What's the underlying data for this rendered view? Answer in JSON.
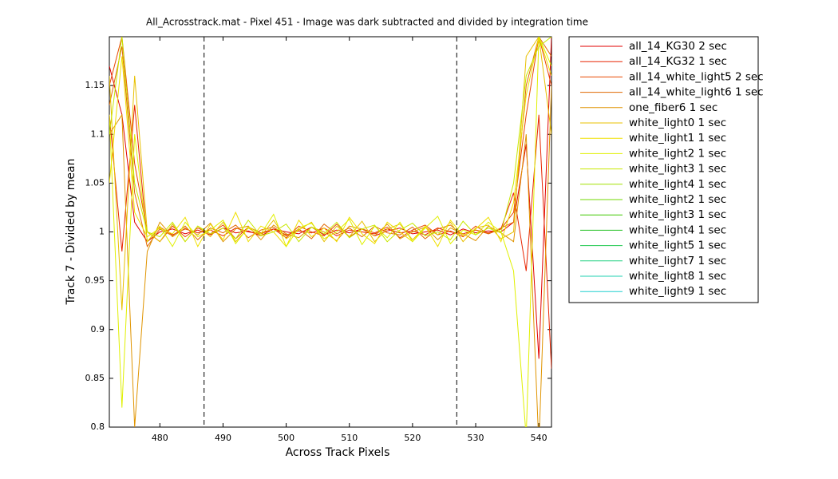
{
  "chart_data": {
    "type": "line",
    "title": "All_Acrosstrack.mat - Pixel 451 - Image was dark subtracted and divided by integration time",
    "xlabel": "Across Track Pixels",
    "ylabel": "Track 7 - Divided by mean",
    "xlim": [
      472,
      542
    ],
    "xticks": [
      480,
      490,
      500,
      510,
      520,
      530,
      540
    ],
    "ylim": [
      0.8,
      1.2
    ],
    "yticks": [
      0.8,
      0.85,
      0.9,
      0.95,
      1,
      1.05,
      1.1,
      1.15
    ],
    "vlines": [
      487,
      527
    ],
    "legend": "outside-right",
    "x": [
      472,
      474,
      476,
      478,
      480,
      482,
      484,
      486,
      488,
      490,
      492,
      494,
      496,
      498,
      500,
      502,
      504,
      506,
      508,
      510,
      512,
      514,
      516,
      518,
      520,
      522,
      524,
      526,
      528,
      530,
      532,
      534,
      536,
      538,
      540,
      542
    ],
    "series": [
      {
        "name": "all_14_KG30 2 sec",
        "color": "#e00000",
        "values": [
          1.17,
          1.12,
          1.01,
          0.99,
          1.0,
          1.003,
          0.998,
          1.002,
          0.997,
          1.004,
          0.999,
          1.001,
          0.996,
          1.003,
          1.0,
          0.998,
          1.005,
          0.997,
          1.002,
          0.999,
          1.003,
          0.996,
          1.001,
          1.004,
          0.998,
          1.0,
          1.002,
          0.997,
          1.003,
          0.999,
          1.001,
          1.0,
          1.01,
          1.09,
          0.87,
          1.2
        ]
      },
      {
        "name": "all_14_KG32 1 sec",
        "color": "#e82400",
        "values": [
          1.12,
          0.98,
          1.13,
          0.99,
          1.005,
          0.997,
          1.003,
          0.999,
          1.002,
          0.996,
          1.004,
          1.0,
          0.998,
          1.003,
          0.997,
          1.001,
          0.999,
          1.004,
          0.996,
          1.002,
          1.0,
          0.998,
          1.003,
          0.999,
          1.001,
          0.997,
          1.004,
          1.0,
          0.998,
          1.002,
          0.999,
          1.003,
          1.04,
          0.96,
          1.12,
          0.86
        ]
      },
      {
        "name": "all_14_white_light5 2 sec",
        "color": "#e84800",
        "values": [
          1.15,
          1.2,
          1.07,
          1.0,
          0.99,
          1.006,
          0.995,
          1.004,
          0.998,
          1.007,
          0.993,
          1.005,
          0.999,
          1.003,
          0.994,
          1.006,
          1.0,
          0.996,
          1.008,
          0.995,
          1.003,
          0.999,
          1.005,
          0.994,
          1.002,
          1.007,
          0.997,
          1.001,
          0.995,
          1.006,
          0.998,
          1.003,
          1.02,
          1.12,
          1.2,
          1.15
        ]
      },
      {
        "name": "all_14_white_light6 1 sec",
        "color": "#e06800",
        "values": [
          1.13,
          1.19,
          1.04,
          0.985,
          1.003,
          0.996,
          1.006,
          0.992,
          1.004,
          0.999,
          1.007,
          0.994,
          1.002,
          1.005,
          0.996,
          1.003,
          0.993,
          1.008,
          0.998,
          1.004,
          0.995,
          1.006,
          0.999,
          0.997,
          1.005,
          0.993,
          1.003,
          1.007,
          0.996,
          1.002,
          0.998,
          1.004,
          1.01,
          1.15,
          1.2,
          1.18
        ]
      },
      {
        "name": "one_fiber6 1 sec",
        "color": "#e09400",
        "values": [
          1.1,
          1.12,
          0.8,
          0.98,
          1.01,
          0.995,
          1.004,
          0.997,
          1.009,
          0.99,
          1.003,
          1.006,
          0.992,
          1.007,
          0.998,
          0.994,
          1.005,
          1.0,
          0.991,
          1.006,
          1.003,
          0.996,
          1.008,
          0.993,
          1.0,
          1.005,
          0.992,
          1.004,
          0.998,
          0.991,
          1.006,
          0.999,
          0.99,
          1.1,
          0.78,
          1.15
        ]
      },
      {
        "name": "white_light0 1 sec",
        "color": "#e8c000",
        "values": [
          1.16,
          0.92,
          1.16,
          1.0,
          0.99,
          1.008,
          0.99,
          1.006,
          0.995,
          1.01,
          0.99,
          1.004,
          0.996,
          1.012,
          0.993,
          1.002,
          1.01,
          0.99,
          1.006,
          0.995,
          1.011,
          0.99,
          1.003,
          1.008,
          0.992,
          1.005,
          0.997,
          1.01,
          0.99,
          1.004,
          1.007,
          0.993,
          1.0,
          1.18,
          1.2,
          1.1
        ]
      },
      {
        "name": "white_light1 1 sec",
        "color": "#f0e000",
        "values": [
          1.05,
          1.18,
          1.02,
          0.995,
          1.004,
          0.998,
          1.015,
          0.985,
          1.008,
          0.992,
          1.02,
          0.99,
          1.006,
          1.0,
          0.985,
          1.012,
          0.995,
          1.004,
          0.99,
          1.015,
          0.998,
          0.988,
          1.01,
          1.0,
          0.99,
          1.006,
          0.985,
          1.012,
          0.996,
          1.003,
          1.015,
          0.99,
          1.03,
          1.14,
          1.2,
          1.16
        ]
      },
      {
        "name": "white_light2 1 sec",
        "color": "#e0f000",
        "values": [
          1.12,
          0.82,
          1.1,
          0.99,
          1.006,
          0.985,
          1.01,
          0.995,
          1.002,
          1.012,
          0.988,
          1.005,
          0.998,
          1.018,
          0.985,
          1.004,
          1.009,
          0.993,
          1.0,
          1.013,
          0.987,
          1.006,
          0.994,
          1.01,
          0.99,
          1.004,
          1.016,
          0.988,
          1.002,
          0.997,
          1.01,
          1.0,
          0.96,
          0.79,
          1.2,
          1.17
        ]
      },
      {
        "name": "white_light3 1 sec",
        "color": "#c8e800",
        "values": [
          1.1,
          1.2,
          1.05,
          1.0,
          0.995,
          1.01,
          0.99,
          1.006,
          0.998,
          1.004,
          0.993,
          1.012,
          0.996,
          1.0,
          1.008,
          0.99,
          1.005,
          0.998,
          1.01,
          0.994,
          1.003,
          1.007,
          0.99,
          1.002,
          1.009,
          0.996,
          1.0,
          0.992,
          1.011,
          0.997,
          1.004,
          0.999,
          1.05,
          1.16,
          1.19,
          1.2
        ]
      },
      {
        "name": "white_light4 1 sec",
        "color": "#a0e000",
        "values": [
          null,
          null,
          null,
          null,
          null,
          null,
          null,
          null,
          null,
          null,
          null,
          null,
          null,
          null,
          null,
          null,
          null,
          null,
          null,
          null,
          null,
          null,
          null,
          null,
          null,
          null,
          null,
          null,
          null,
          null,
          null,
          null,
          null,
          null,
          null,
          null
        ]
      },
      {
        "name": "white_light2 1 sec",
        "color": "#70d800",
        "values": [
          null,
          null,
          null,
          null,
          null,
          null,
          null,
          null,
          null,
          null,
          null,
          null,
          null,
          null,
          null,
          null,
          null,
          null,
          null,
          null,
          null,
          null,
          null,
          null,
          null,
          null,
          null,
          null,
          null,
          null,
          null,
          null,
          null,
          null,
          null,
          null
        ]
      },
      {
        "name": "white_light3 1 sec",
        "color": "#40c800",
        "values": [
          null,
          null,
          null,
          null,
          null,
          null,
          null,
          null,
          null,
          null,
          null,
          null,
          null,
          null,
          null,
          null,
          null,
          null,
          null,
          null,
          null,
          null,
          null,
          null,
          null,
          null,
          null,
          null,
          null,
          null,
          null,
          null,
          null,
          null,
          null,
          null
        ]
      },
      {
        "name": "white_light4 1 sec",
        "color": "#20c020",
        "values": [
          null,
          null,
          null,
          null,
          null,
          null,
          null,
          null,
          null,
          null,
          null,
          null,
          null,
          null,
          null,
          null,
          null,
          null,
          null,
          null,
          null,
          null,
          null,
          null,
          null,
          null,
          null,
          null,
          null,
          null,
          null,
          null,
          null,
          null,
          null,
          null
        ]
      },
      {
        "name": "white_light5 1 sec",
        "color": "#20c850",
        "values": [
          null,
          null,
          null,
          null,
          null,
          null,
          null,
          null,
          null,
          null,
          null,
          null,
          null,
          null,
          null,
          null,
          null,
          null,
          null,
          null,
          null,
          null,
          null,
          null,
          null,
          null,
          null,
          null,
          null,
          null,
          null,
          null,
          null,
          null,
          null,
          null
        ]
      },
      {
        "name": "white_light7 1 sec",
        "color": "#20d080",
        "values": [
          null,
          null,
          null,
          null,
          null,
          null,
          null,
          null,
          null,
          null,
          null,
          null,
          null,
          null,
          null,
          null,
          null,
          null,
          null,
          null,
          null,
          null,
          null,
          null,
          null,
          null,
          null,
          null,
          null,
          null,
          null,
          null,
          null,
          null,
          null,
          null
        ]
      },
      {
        "name": "white_light8 1 sec",
        "color": "#20d0b0",
        "values": [
          null,
          null,
          null,
          null,
          null,
          null,
          null,
          null,
          null,
          null,
          null,
          null,
          null,
          null,
          null,
          null,
          null,
          null,
          null,
          null,
          null,
          null,
          null,
          null,
          null,
          null,
          null,
          null,
          null,
          null,
          null,
          null,
          null,
          null,
          null,
          null
        ]
      },
      {
        "name": "white_light9 1 sec",
        "color": "#20d0d0",
        "values": [
          null,
          null,
          null,
          null,
          null,
          null,
          null,
          null,
          null,
          null,
          null,
          null,
          null,
          null,
          null,
          null,
          null,
          null,
          null,
          null,
          null,
          null,
          null,
          null,
          null,
          null,
          null,
          null,
          null,
          null,
          null,
          null,
          null,
          null,
          null,
          null
        ]
      }
    ]
  }
}
